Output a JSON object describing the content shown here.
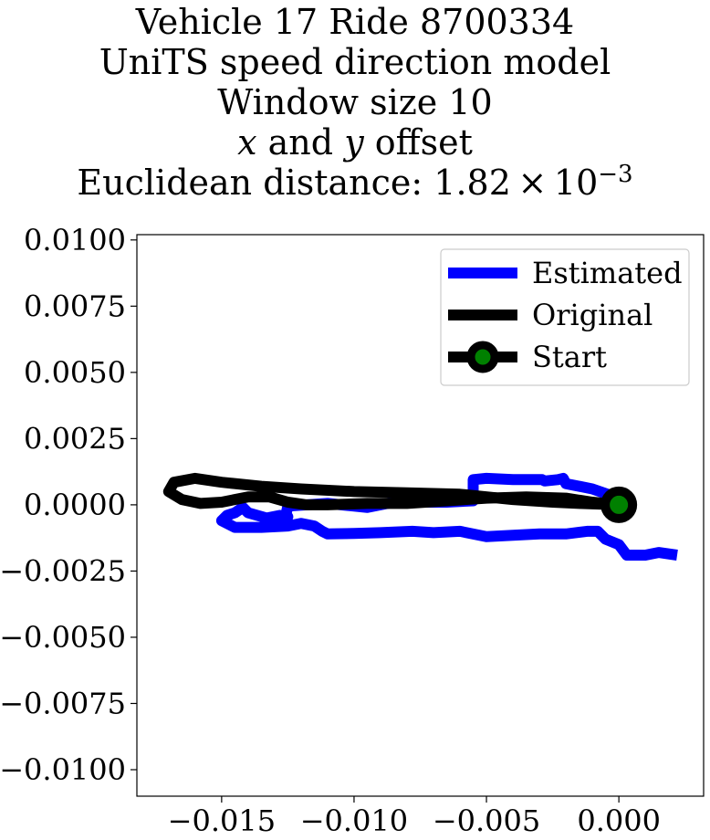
{
  "title": {
    "line1": "Vehicle 17 Ride 8700334",
    "line2": "UniTS speed direction model",
    "line3": "Window size 10",
    "line4_x": "x",
    "line4_mid": " and ",
    "line4_y": "y",
    "line4_end": " offset",
    "line5_prefix": "Euclidean distance: 1.82 × 10",
    "line5_exp": "−3"
  },
  "chart_data": {
    "type": "line",
    "xlim": [
      -0.0182,
      0.0032
    ],
    "ylim": [
      -0.011,
      0.0102
    ],
    "x_ticks": [
      -0.015,
      -0.01,
      -0.005,
      0.0
    ],
    "x_tick_labels": [
      "−0.015",
      "−0.010",
      "−0.005",
      "0.000"
    ],
    "y_ticks": [
      0.01,
      0.0075,
      0.005,
      0.0025,
      0.0,
      -0.0025,
      -0.005,
      -0.0075,
      -0.01
    ],
    "y_tick_labels": [
      "0.0100",
      "0.0075",
      "0.0050",
      "0.0025",
      "0.0000",
      "−0.0025",
      "−0.0050",
      "−0.0075",
      "−0.0100"
    ],
    "grid": false,
    "legend_position": "top-right",
    "series": [
      {
        "name": "Estimated",
        "color": "#0000ff",
        "x": [
          0.0,
          -0.001,
          -0.002,
          -0.0021,
          -0.0023,
          -0.0028,
          -0.0029,
          -0.0035,
          -0.004,
          -0.005,
          -0.0055,
          -0.0055,
          -0.0065,
          -0.0085,
          -0.0095,
          -0.01,
          -0.011,
          -0.0125,
          -0.0126,
          -0.0125,
          -0.0128,
          -0.0133,
          -0.014,
          -0.0142,
          -0.0145,
          -0.0148,
          -0.015,
          -0.0145,
          -0.0135,
          -0.0125,
          -0.012,
          -0.0115,
          -0.0112,
          -0.011,
          -0.01,
          -0.009,
          -0.0078,
          -0.007,
          -0.006,
          -0.005,
          -0.004,
          -0.003,
          -0.002,
          -0.0012,
          -0.0008,
          -0.0005,
          0.0,
          0.0003,
          0.001,
          0.0015,
          0.0022
        ],
        "y": [
          0.00025,
          0.0006,
          0.0008,
          0.001,
          0.00095,
          0.0009,
          0.00095,
          0.00095,
          0.00095,
          0.001,
          0.00095,
          0.00015,
          0.0001,
          0.0001,
          -0.0001,
          -5e-05,
          5e-05,
          -5e-05,
          -0.0005,
          -0.00045,
          -0.0004,
          -0.0005,
          -0.0003,
          -0.0001,
          -0.0003,
          -0.0004,
          -0.0006,
          -0.00085,
          -0.00085,
          -0.0008,
          -0.0007,
          -0.0008,
          -0.001,
          -0.0011,
          -0.00108,
          -0.00105,
          -0.001,
          -0.00105,
          -0.001,
          -0.0012,
          -0.00115,
          -0.0011,
          -0.0011,
          -0.001,
          -0.001,
          -0.0013,
          -0.0015,
          -0.0019,
          -0.0019,
          -0.0018,
          -0.0019
        ]
      },
      {
        "name": "Original",
        "color": "#000000",
        "x": [
          0.0,
          -0.0015,
          -0.0025,
          -0.004,
          -0.006,
          -0.008,
          -0.01,
          -0.012,
          -0.0135,
          -0.015,
          -0.016,
          -0.0168,
          -0.017,
          -0.0165,
          -0.0158,
          -0.015,
          -0.014,
          -0.0132,
          -0.0125,
          -0.0118,
          -0.011,
          -0.0095,
          -0.008,
          -0.0065,
          -0.005,
          -0.0035,
          -0.002,
          -0.001,
          0.0
        ],
        "y": [
          0.0,
          5e-05,
          0.0001,
          0.0002,
          0.0004,
          0.00045,
          0.0005,
          0.0006,
          0.0007,
          0.00085,
          0.001,
          0.00085,
          0.0005,
          0.0002,
          5e-05,
          0.0001,
          0.0003,
          0.0003,
          0.0001,
          0.0,
          0.0,
          5e-05,
          5e-05,
          0.00015,
          0.00025,
          0.0003,
          0.00025,
          0.0001,
          0.0
        ]
      }
    ],
    "start_marker": {
      "name": "Start",
      "x": 0.0,
      "y": 0.0,
      "edge_color": "#000000",
      "face_color": "#008000"
    }
  }
}
